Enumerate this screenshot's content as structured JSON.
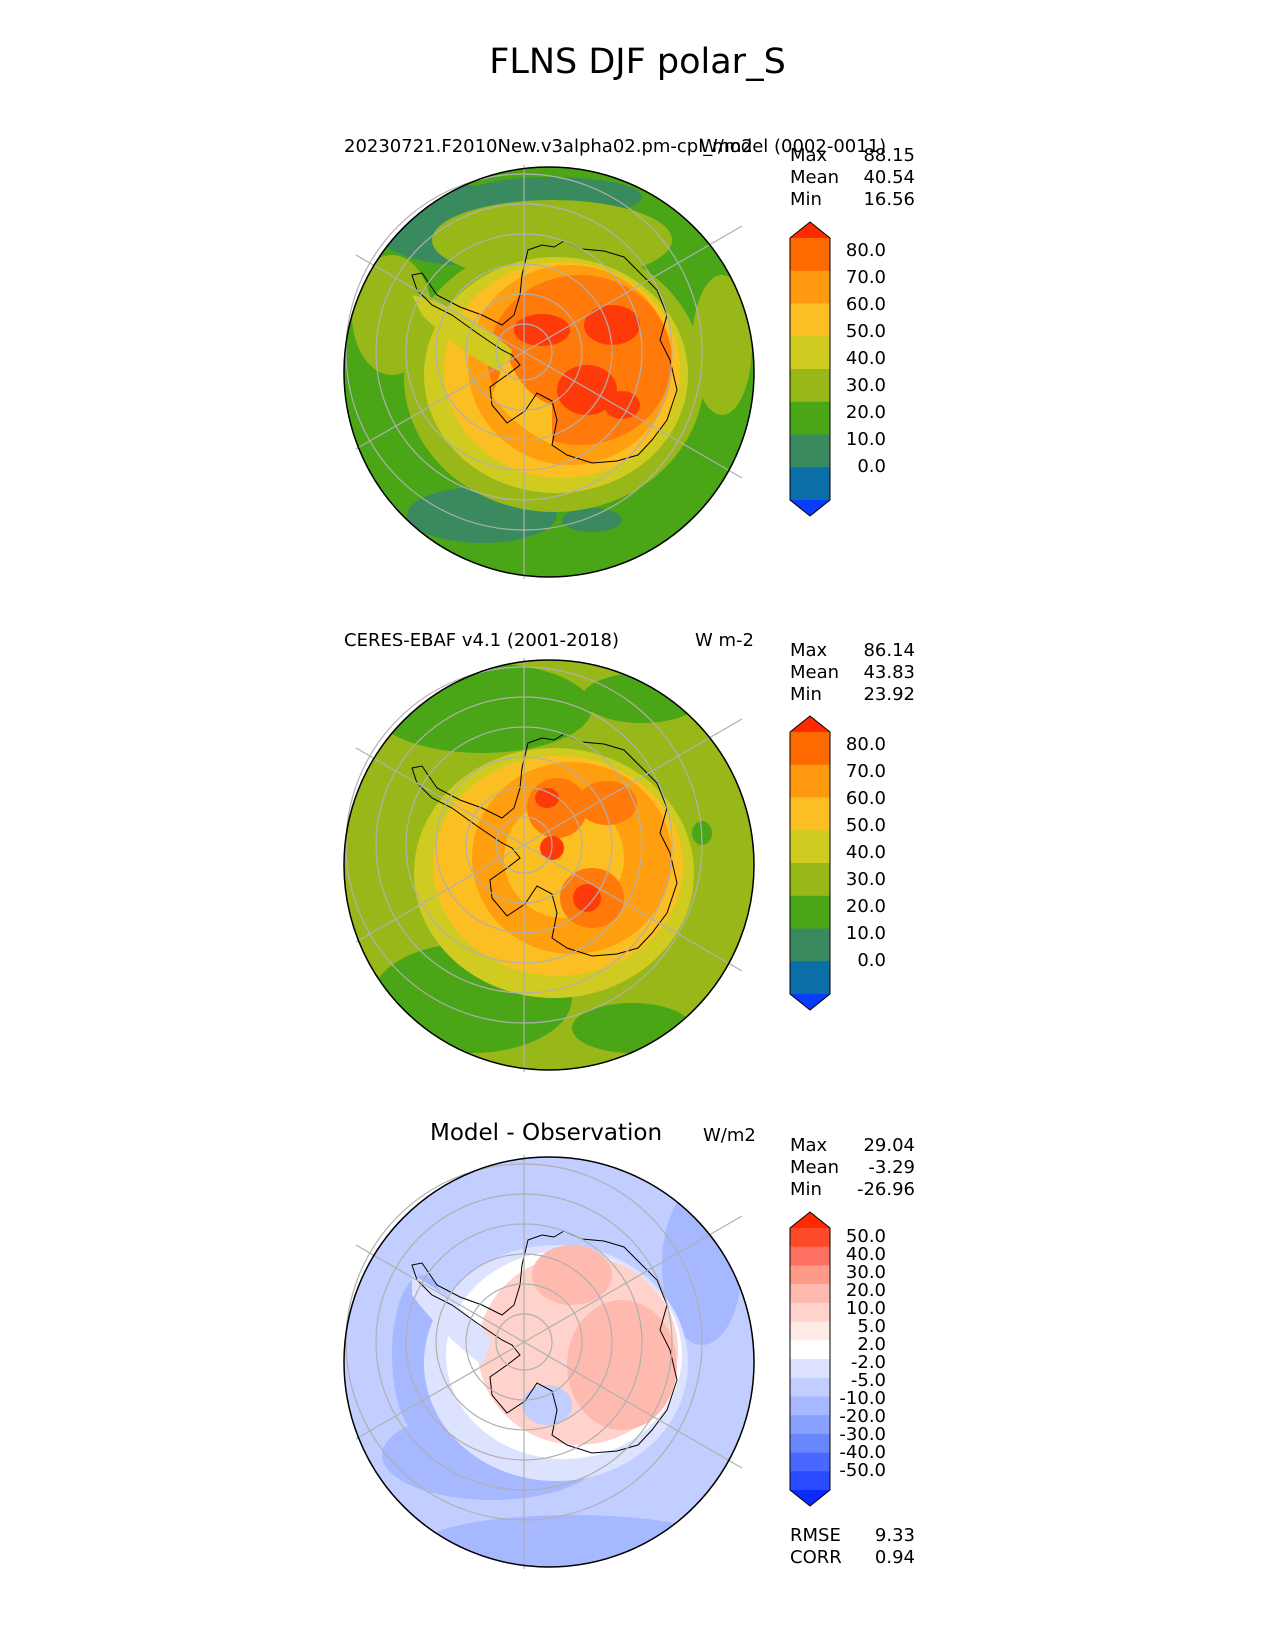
{
  "title": "FLNS DJF polar_S",
  "colors": {
    "land_outline": "#000000",
    "grid": "#b0b0b0",
    "ocean_green": "#4aa617",
    "teal": "#3a8a5f",
    "olive": "#98b81a",
    "yellow_green": "#cfcb21",
    "yellow": "#fbbf24",
    "light_orange": "#ff9f10",
    "orange": "#ff7a0a",
    "red_orange": "#ff3a0a"
  },
  "panels": [
    {
      "name": "model",
      "subtitle": "20230721.F2010New.v3alpha02.pm-cpl_model (0002-0011)",
      "units": "W/m2",
      "stats": {
        "max_label": "Max",
        "max": "88.15",
        "mean_label": "Mean",
        "mean": "40.54",
        "min_label": "Min",
        "min": "16.56"
      },
      "colorbar": {
        "ticks": [
          "80.0",
          "70.0",
          "60.0",
          "50.0",
          "40.0",
          "30.0",
          "20.0",
          "10.0",
          "0.0"
        ],
        "colors": [
          "#ff2a00",
          "#ff6a00",
          "#ff9a10",
          "#fbbf24",
          "#cfcb21",
          "#98b81a",
          "#4aa617",
          "#3a8a5f",
          "#0a6ea8",
          "#0a3cff"
        ]
      }
    },
    {
      "name": "observation",
      "subtitle": "CERES-EBAF v4.1 (2001-2018)",
      "units": "W m-2",
      "stats": {
        "max_label": "Max",
        "max": "86.14",
        "mean_label": "Mean",
        "mean": "43.83",
        "min_label": "Min",
        "min": "23.92"
      },
      "colorbar": {
        "ticks": [
          "80.0",
          "70.0",
          "60.0",
          "50.0",
          "40.0",
          "30.0",
          "20.0",
          "10.0",
          "0.0"
        ],
        "colors": [
          "#ff2a00",
          "#ff6a00",
          "#ff9a10",
          "#fbbf24",
          "#cfcb21",
          "#98b81a",
          "#4aa617",
          "#3a8a5f",
          "#0a6ea8",
          "#0a3cff"
        ]
      }
    },
    {
      "name": "difference",
      "subtitle": "Model - Observation",
      "units": "W/m2",
      "stats": {
        "max_label": "Max",
        "max": "29.04",
        "mean_label": "Mean",
        "mean": "-3.29",
        "min_label": "Min",
        "min": "-26.96"
      },
      "colorbar": {
        "ticks": [
          "50.0",
          "40.0",
          "30.0",
          "20.0",
          "10.0",
          "5.0",
          "2.0",
          "-2.0",
          "-5.0",
          "-10.0",
          "-20.0",
          "-30.0",
          "-40.0",
          "-50.0"
        ],
        "colors": [
          "#ff2a00",
          "#ff4a2a",
          "#ff7060",
          "#ff9a8a",
          "#ffbab0",
          "#ffd2cc",
          "#ffeae6",
          "#ffffff",
          "#dde3ff",
          "#c2ceff",
          "#a6b8ff",
          "#8aa2ff",
          "#6a86ff",
          "#4a68ff",
          "#2a4aff",
          "#0a2aff"
        ]
      },
      "metrics": {
        "rmse_label": "RMSE",
        "rmse": "9.33",
        "corr_label": "CORR",
        "corr": "0.94"
      }
    }
  ]
}
